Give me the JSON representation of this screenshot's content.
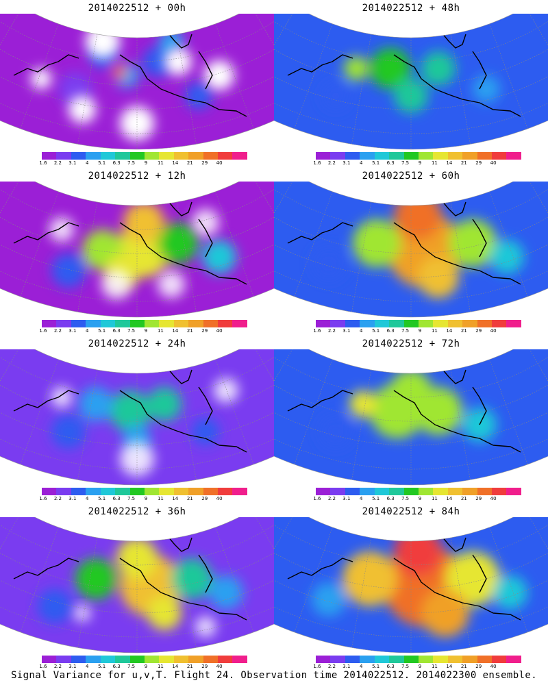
{
  "caption": "Signal Variance for u,v,T. Flight 24. Observation time 2014022512. 2014022300 ensemble.",
  "panels": [
    {
      "title": "2014022512 + 00h",
      "level": 0
    },
    {
      "title": "2014022512 + 48h",
      "level": 4
    },
    {
      "title": "2014022512 + 12h",
      "level": 1
    },
    {
      "title": "2014022512 + 60h",
      "level": 5
    },
    {
      "title": "2014022512 + 24h",
      "level": 2
    },
    {
      "title": "2014022512 + 72h",
      "level": 6
    },
    {
      "title": "2014022512 + 36h",
      "level": 3
    },
    {
      "title": "2014022512 + 84h",
      "level": 7
    }
  ],
  "colorbar": {
    "labels": [
      "1.6",
      "2.2",
      "3.1",
      "4",
      "5.1",
      "6.3",
      "7.5",
      "9",
      "11",
      "14",
      "21",
      "29",
      "40"
    ],
    "colors": [
      "#9b1fd6",
      "#7a3cf0",
      "#2d5cf0",
      "#2aa0f0",
      "#1fc8d8",
      "#1fc89a",
      "#22c822",
      "#a0e632",
      "#e6e632",
      "#f0c030",
      "#f0a028",
      "#f07028",
      "#f03c3c",
      "#f01e8c"
    ]
  }
}
